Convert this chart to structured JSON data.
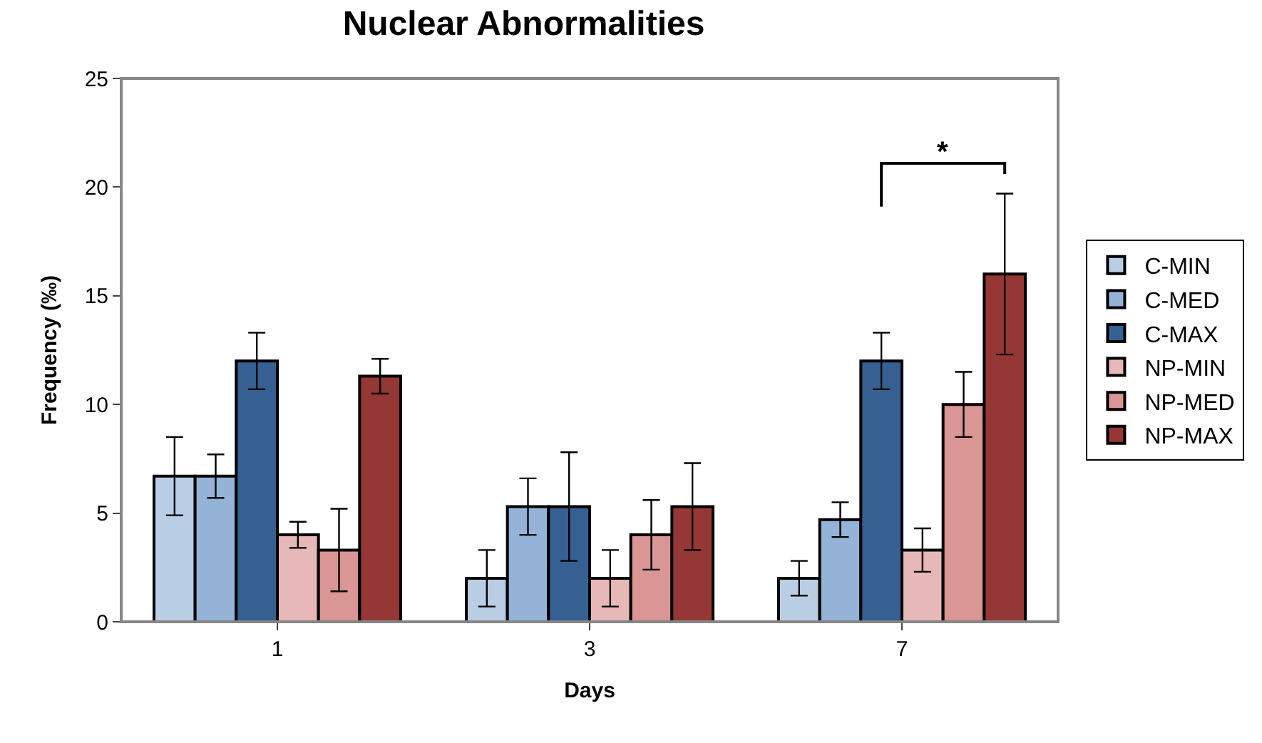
{
  "chart_data": {
    "type": "bar",
    "title": "Nuclear Abnormalities",
    "xlabel": "Days",
    "ylabel": "Frequency (‰)",
    "categories": [
      "1",
      "3",
      "7"
    ],
    "series": [
      {
        "name": "C-MIN",
        "color": "#b9cde5",
        "values": [
          6.7,
          2.0,
          2.0
        ],
        "errors": [
          1.8,
          1.3,
          0.8
        ]
      },
      {
        "name": "C-MED",
        "color": "#95b3d7",
        "values": [
          6.7,
          5.3,
          4.7
        ],
        "errors": [
          1.0,
          1.3,
          0.8
        ]
      },
      {
        "name": "C-MAX",
        "color": "#376092",
        "values": [
          12.0,
          5.3,
          12.0
        ],
        "errors": [
          1.3,
          2.5,
          1.3
        ]
      },
      {
        "name": "NP-MIN",
        "color": "#e6b9b8",
        "values": [
          4.0,
          2.0,
          3.3
        ],
        "errors": [
          0.6,
          1.3,
          1.0
        ]
      },
      {
        "name": "NP-MED",
        "color": "#d99694",
        "values": [
          3.3,
          4.0,
          10.0
        ],
        "errors": [
          1.9,
          1.6,
          1.5
        ]
      },
      {
        "name": "NP-MAX",
        "color": "#953735",
        "values": [
          11.3,
          5.3,
          16.0
        ],
        "errors": [
          0.8,
          2.0,
          3.7
        ]
      }
    ],
    "annotations": [
      "*"
    ],
    "ylim": [
      0,
      25
    ],
    "yticks": [
      0,
      5,
      10,
      15,
      20,
      25
    ],
    "legend": "right"
  }
}
